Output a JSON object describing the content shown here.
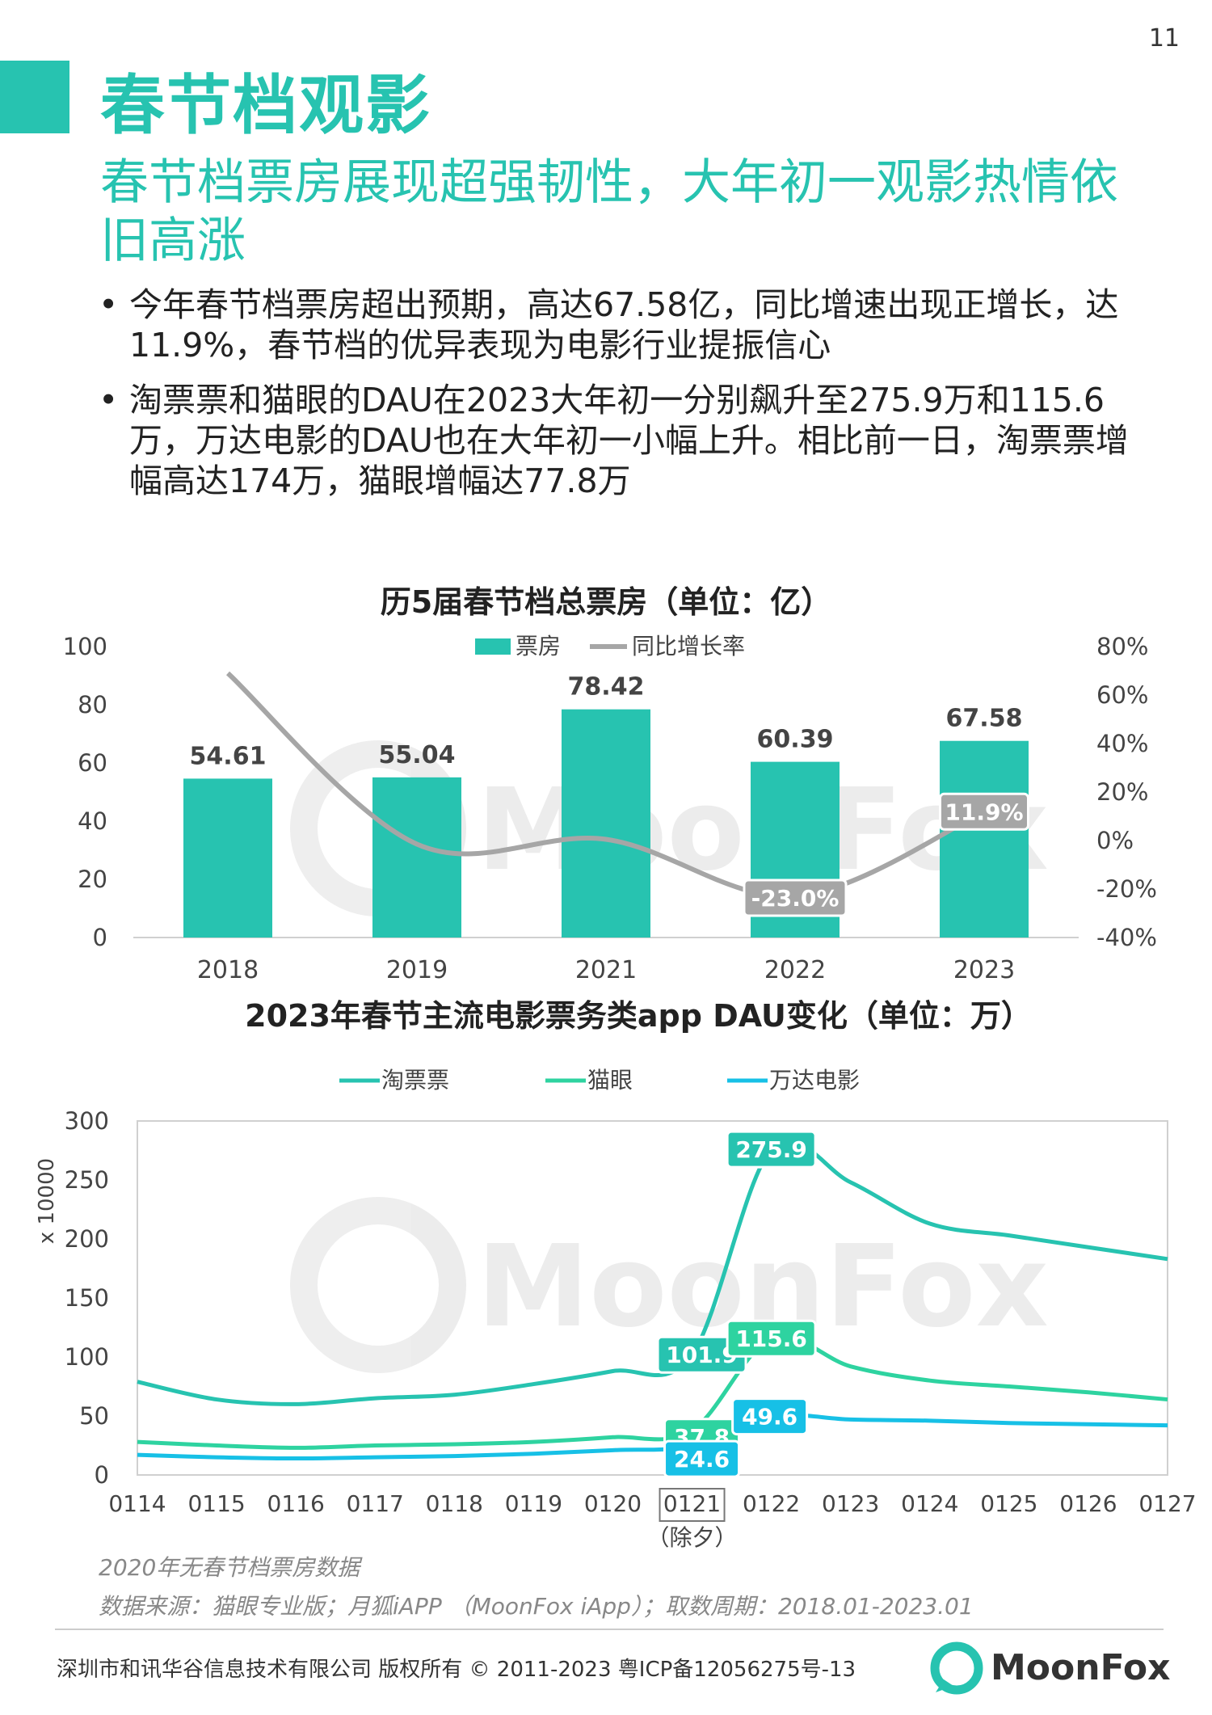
{
  "page": {
    "number": "11",
    "title": "春节档观影",
    "subtitle": "春节档票房展现超强韧性，大年初一观影热情依旧高涨",
    "bullets": [
      "今年春节档票房超出预期，高达67.58亿，同比增速出现正增长，达11.9%，春节档的优异表现为电影行业提振信心",
      "淘票票和猫眼的DAU在2023大年初一分别飙升至275.9万和115.6万，万达电影的DAU也在大年初一小幅上升。相比前一日，淘票票增幅高达174万，猫眼增幅达77.8万"
    ],
    "note": "2020年无春节档票房数据",
    "source": "数据来源：猫眼专业版；月狐iAPP （MoonFox iApp）；取数周期：2018.01-2023.01",
    "copyright": "深圳市和讯华谷信息技术有限公司 版权所有 © 2011-2023 粤ICP备12056275号-13",
    "brand": "MoonFox",
    "colors": {
      "accent": "#27c3b0",
      "gray_line": "#a6a6a6",
      "maoyan": "#2ed3a0",
      "wanda": "#17c0e6"
    }
  },
  "chart_data": [
    {
      "type": "bar",
      "title": "历5届春节档总票房（单位：亿）",
      "categories": [
        "2018",
        "2019",
        "2021",
        "2022",
        "2023"
      ],
      "series": [
        {
          "name": "票房",
          "type": "bar",
          "axis": "left",
          "values": [
            54.61,
            55.04,
            78.42,
            60.39,
            67.58
          ],
          "labels": [
            "54.61",
            "55.04",
            "78.42",
            "60.39",
            "67.58"
          ]
        },
        {
          "name": "同比增长率",
          "type": "line",
          "axis": "right",
          "values": [
            69,
            -1.5,
            0.5,
            -23.0,
            11.9
          ],
          "labels": {
            "3": "-23.0%",
            "4": "11.9%"
          }
        }
      ],
      "ylim": [
        0,
        100
      ],
      "yticks": [
        "0",
        "20",
        "40",
        "60",
        "80",
        "100"
      ],
      "y2lim": [
        -40,
        80
      ],
      "y2ticks": [
        "-40%",
        "-20%",
        "0%",
        "20%",
        "40%",
        "60%",
        "80%"
      ],
      "legend": "top-center",
      "grid": false
    },
    {
      "type": "line",
      "title": "2023年春节主流电影票务类app DAU变化（单位：万）",
      "x": [
        "0114",
        "0115",
        "0116",
        "0117",
        "0118",
        "0119",
        "0120",
        "0121",
        "0122",
        "0123",
        "0124",
        "0125",
        "0126",
        "0127"
      ],
      "x_highlight": {
        "index": 7,
        "note": "（除夕）"
      },
      "ylabel": "x 10000",
      "ylim": [
        0,
        300
      ],
      "yticks": [
        "0",
        "50",
        "100",
        "150",
        "200",
        "250",
        "300"
      ],
      "series": [
        {
          "name": "淘票票",
          "values": [
            79,
            64,
            60,
            65,
            68,
            77,
            88,
            101.9,
            275.9,
            248,
            213,
            203,
            193,
            183
          ],
          "labels": {
            "7": "101.9",
            "8": "275.9"
          }
        },
        {
          "name": "猫眼",
          "values": [
            28,
            25,
            23,
            25,
            26,
            28,
            32,
            37.8,
            115.6,
            92,
            80,
            75,
            70,
            64
          ],
          "labels": {
            "7": "37.8",
            "8": "115.6"
          }
        },
        {
          "name": "万达电影",
          "values": [
            17,
            15,
            14,
            15,
            16,
            18,
            21,
            24.6,
            49.6,
            47,
            46,
            44,
            43,
            42
          ],
          "labels": {
            "7": "24.6",
            "8": "49.6"
          }
        }
      ],
      "legend": "top",
      "grid": false
    }
  ]
}
